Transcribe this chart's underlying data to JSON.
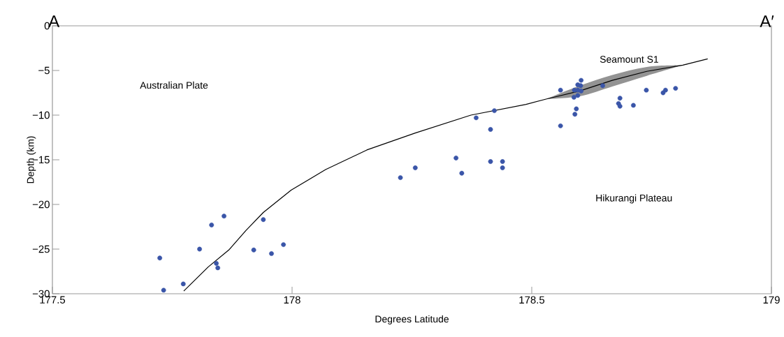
{
  "chart_data": {
    "type": "scatter",
    "xlabel": "Degrees Latitude",
    "ylabel": "Depth (km)",
    "xlim": [
      177.5,
      179
    ],
    "ylim": [
      -30,
      0
    ],
    "xticks": [
      177.5,
      178,
      178.5,
      179
    ],
    "yticks": [
      {
        "value": -30,
        "label": "−30"
      },
      {
        "value": -25,
        "label": "−25"
      },
      {
        "value": -20,
        "label": "−20"
      },
      {
        "value": -15,
        "label": "−15"
      },
      {
        "value": -10,
        "label": "−10"
      },
      {
        "value": -5,
        "label": "−5"
      },
      0
    ],
    "grid": false,
    "annotations": [
      "A",
      "A′",
      "Australian Plate",
      "Hikurangi Plateau",
      "Seamount S1"
    ],
    "series": [
      {
        "color": "#3a55a8",
        "marker": "circle",
        "x": [
          177.724,
          177.732,
          177.773,
          177.807,
          177.832,
          177.842,
          177.845,
          177.858,
          177.92,
          177.94,
          177.957,
          177.982,
          178.226,
          178.257,
          178.342,
          178.354,
          178.384,
          178.414,
          178.414,
          178.422,
          178.439,
          178.439,
          178.56,
          178.603,
          178.596,
          178.602,
          178.589,
          178.596,
          178.603,
          178.588,
          178.596,
          178.648,
          178.593,
          178.59,
          178.56,
          178.684,
          178.681,
          178.684,
          178.712,
          178.739,
          178.774,
          178.779,
          178.8
        ],
        "values": [
          -26.0,
          -29.6,
          -28.9,
          -25.0,
          -22.3,
          -26.6,
          -27.1,
          -21.3,
          -25.1,
          -21.7,
          -25.5,
          -24.5,
          -17.0,
          -15.9,
          -14.8,
          -16.5,
          -10.3,
          -15.2,
          -11.6,
          -9.5,
          -15.2,
          -15.9,
          -7.2,
          -6.1,
          -6.6,
          -6.7,
          -7.2,
          -7.2,
          -7.3,
          -8.0,
          -7.8,
          -6.7,
          -9.3,
          -9.9,
          -11.2,
          -8.1,
          -8.7,
          -9.0,
          -8.9,
          -7.2,
          -7.5,
          -7.2,
          -7.0
        ]
      },
      {
        "type": "line",
        "color": "#000000",
        "marker": "none",
        "x": [
          177.774,
          177.825,
          177.868,
          177.904,
          177.94,
          177.998,
          178.07,
          178.156,
          178.257,
          178.373,
          178.488,
          178.53,
          178.6,
          178.668,
          178.74,
          178.815,
          178.867
        ],
        "values": [
          -29.7,
          -27.0,
          -25.1,
          -22.9,
          -20.9,
          -18.4,
          -16.1,
          -13.9,
          -12.0,
          -10.0,
          -8.8,
          -8.2,
          -7.3,
          -6.1,
          -5.1,
          -4.4,
          -3.7
        ],
        "lower": [
          null,
          null,
          null,
          null,
          null,
          null,
          null,
          null,
          null,
          null,
          null,
          -8.2,
          -7.9,
          -6.8,
          -5.6,
          -4.4,
          null
        ],
        "upper": [
          null,
          null,
          null,
          null,
          null,
          null,
          null,
          null,
          null,
          null,
          null,
          -8.2,
          -6.7,
          -5.5,
          -4.6,
          -4.4,
          null
        ]
      }
    ]
  }
}
